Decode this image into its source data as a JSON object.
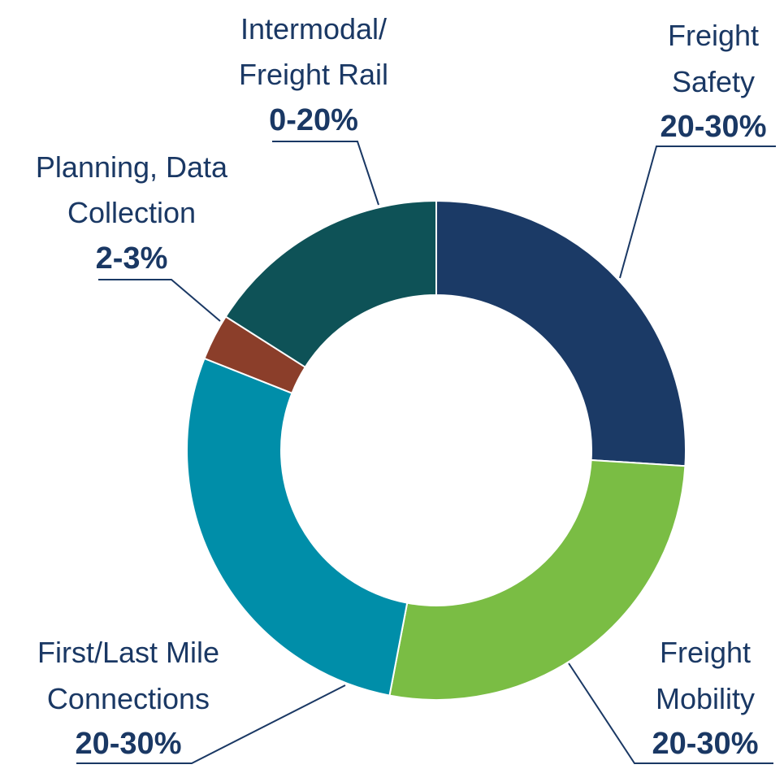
{
  "chart_data": {
    "type": "pie",
    "style": "donut",
    "slices": [
      {
        "label_lines": [
          "Freight",
          "Safety"
        ],
        "value_label": "20-30%",
        "value": 26,
        "color": "#1b3a66"
      },
      {
        "label_lines": [
          "Freight",
          "Mobility"
        ],
        "value_label": "20-30%",
        "value": 27,
        "color": "#7abd44"
      },
      {
        "label_lines": [
          "First/Last Mile",
          "Connections"
        ],
        "value_label": "20-30%",
        "value": 28,
        "color": "#008ea9"
      },
      {
        "label_lines": [
          "Planning, Data",
          "Collection"
        ],
        "value_label": "2-3%",
        "value": 3,
        "color": "#8b3e2a"
      },
      {
        "label_lines": [
          "Intermodal/",
          "Freight Rail"
        ],
        "value_label": "0-20%",
        "value": 16,
        "color": "#0e5257"
      }
    ]
  }
}
